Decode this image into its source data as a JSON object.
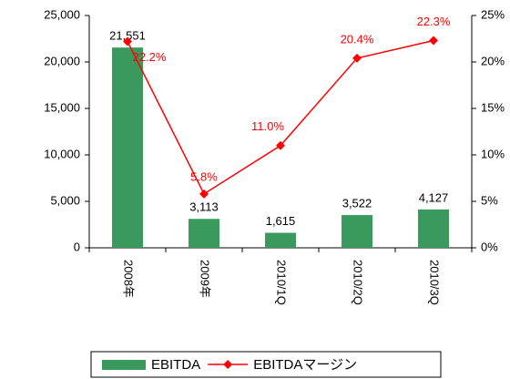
{
  "chart_data": {
    "type": "bar_line",
    "categories": [
      "2008年",
      "2009年",
      "2010/1Q",
      "2010/2Q",
      "2010/3Q"
    ],
    "series": [
      {
        "name": "EBITDA",
        "type": "bar",
        "color": "#3a9a5e",
        "values": [
          21551,
          3113,
          1615,
          3522,
          4127
        ],
        "value_labels": [
          "21,551",
          "3,113",
          "1,615",
          "3,522",
          "4,127"
        ]
      },
      {
        "name": "EBITDAマージン",
        "type": "line",
        "axis": "y2",
        "color": "#ff0000",
        "values": [
          22.2,
          5.8,
          11.0,
          20.4,
          22.3
        ],
        "value_labels": [
          "22.2%",
          "5.8%",
          "11.0%",
          "20.4%",
          "22.3%"
        ]
      }
    ],
    "ylim": [
      0,
      25000
    ],
    "yticks": [
      0,
      {
        "value": 5000,
        "label": "5,000"
      },
      {
        "value": 10000,
        "label": "10,000"
      },
      {
        "value": 15000,
        "label": "15,000"
      },
      {
        "value": 20000,
        "label": "20,000"
      },
      {
        "value": 25000,
        "label": "25,000"
      }
    ],
    "y2lim": [
      0,
      25
    ],
    "y2ticks": [
      {
        "value": 0,
        "label": "0%"
      },
      {
        "value": 5,
        "label": "5%"
      },
      {
        "value": 10,
        "label": "10%"
      },
      {
        "value": 15,
        "label": "15%"
      },
      {
        "value": 20,
        "label": "20%"
      },
      {
        "value": 25,
        "label": "25%"
      }
    ],
    "grid": false,
    "legend": "bottom"
  }
}
